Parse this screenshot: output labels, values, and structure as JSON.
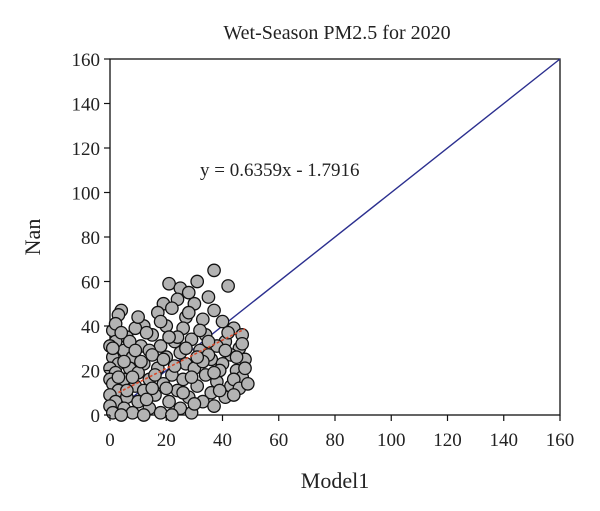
{
  "chart_data": {
    "type": "scatter",
    "title": "Wet-Season PM2.5 for 2020",
    "xlabel": "Model1",
    "ylabel": "Nan",
    "xlim": [
      0,
      160
    ],
    "ylim": [
      0,
      160
    ],
    "xticks": [
      "0",
      "20",
      "40",
      "60",
      "80",
      "100",
      "120",
      "140",
      "160"
    ],
    "yticks": [
      "0",
      "20",
      "40",
      "60",
      "80",
      "100",
      "120",
      "140",
      "160"
    ],
    "grid": false,
    "annotation": "y = 0.6359x - 1.7916",
    "identity_line": {
      "x": [
        0,
        160
      ],
      "y": [
        0,
        160
      ],
      "color": "#2b2f8f"
    },
    "fit_line": {
      "slope": 0.6359,
      "intercept": -1.7916,
      "x": [
        3,
        48
      ],
      "color": "#d94a2b"
    },
    "marker": {
      "fill": "#b3b3b3",
      "stroke": "#111111"
    },
    "points": [
      [
        37,
        65
      ],
      [
        31,
        60
      ],
      [
        21,
        59
      ],
      [
        25,
        57
      ],
      [
        42,
        58
      ],
      [
        28,
        55
      ],
      [
        35,
        53
      ],
      [
        24,
        52
      ],
      [
        19,
        50
      ],
      [
        30,
        50
      ],
      [
        22,
        48
      ],
      [
        37,
        47
      ],
      [
        17,
        46
      ],
      [
        4,
        47
      ],
      [
        3,
        45
      ],
      [
        27,
        44
      ],
      [
        33,
        43
      ],
      [
        40,
        42
      ],
      [
        12,
        40
      ],
      [
        20,
        40
      ],
      [
        44,
        39
      ],
      [
        1,
        38
      ],
      [
        9,
        39
      ],
      [
        26,
        39
      ],
      [
        47,
        36
      ],
      [
        6,
        35
      ],
      [
        15,
        36
      ],
      [
        34,
        36
      ],
      [
        2,
        33
      ],
      [
        23,
        33
      ],
      [
        29,
        34
      ],
      [
        41,
        33
      ],
      [
        0,
        31
      ],
      [
        11,
        31
      ],
      [
        18,
        31
      ],
      [
        38,
        31
      ],
      [
        46,
        30
      ],
      [
        5,
        29
      ],
      [
        14,
        29
      ],
      [
        25,
        28
      ],
      [
        32,
        29
      ],
      [
        43,
        27
      ],
      [
        1,
        26
      ],
      [
        8,
        26
      ],
      [
        20,
        26
      ],
      [
        36,
        25
      ],
      [
        48,
        25
      ],
      [
        3,
        23
      ],
      [
        12,
        23
      ],
      [
        27,
        23
      ],
      [
        40,
        23
      ],
      [
        0,
        21
      ],
      [
        7,
        21
      ],
      [
        17,
        21
      ],
      [
        30,
        21
      ],
      [
        45,
        20
      ],
      [
        2,
        19
      ],
      [
        10,
        19
      ],
      [
        22,
        18
      ],
      [
        34,
        18
      ],
      [
        47,
        17
      ],
      [
        0,
        16
      ],
      [
        5,
        16
      ],
      [
        14,
        16
      ],
      [
        26,
        16
      ],
      [
        38,
        15
      ],
      [
        1,
        14
      ],
      [
        9,
        13
      ],
      [
        19,
        14
      ],
      [
        31,
        13
      ],
      [
        43,
        13
      ],
      [
        3,
        11
      ],
      [
        12,
        11
      ],
      [
        24,
        11
      ],
      [
        36,
        10
      ],
      [
        0,
        9
      ],
      [
        6,
        8
      ],
      [
        16,
        9
      ],
      [
        28,
        8
      ],
      [
        41,
        8
      ],
      [
        2,
        6
      ],
      [
        10,
        6
      ],
      [
        21,
        6
      ],
      [
        33,
        6
      ],
      [
        0,
        4
      ],
      [
        5,
        3
      ],
      [
        14,
        3
      ],
      [
        25,
        3
      ],
      [
        37,
        4
      ],
      [
        1,
        1
      ],
      [
        8,
        1
      ],
      [
        18,
        1
      ],
      [
        29,
        1
      ],
      [
        4,
        0
      ],
      [
        12,
        0
      ],
      [
        22,
        0
      ],
      [
        15,
        27
      ],
      [
        13,
        37
      ],
      [
        7,
        33
      ],
      [
        39,
        20
      ],
      [
        44,
        16
      ],
      [
        48,
        21
      ],
      [
        46,
        12
      ],
      [
        35,
        27
      ],
      [
        24,
        35
      ],
      [
        10,
        44
      ],
      [
        2,
        41
      ],
      [
        18,
        42
      ],
      [
        28,
        46
      ],
      [
        32,
        38
      ],
      [
        42,
        37
      ],
      [
        20,
        12
      ],
      [
        16,
        18
      ],
      [
        27,
        30
      ],
      [
        6,
        11
      ],
      [
        11,
        24
      ],
      [
        39,
        11
      ],
      [
        30,
        5
      ],
      [
        45,
        26
      ],
      [
        23,
        22
      ],
      [
        8,
        17
      ],
      [
        4,
        37
      ],
      [
        19,
        25
      ],
      [
        35,
        33
      ],
      [
        49,
        14
      ],
      [
        41,
        29
      ],
      [
        13,
        7
      ],
      [
        26,
        10
      ],
      [
        33,
        24
      ],
      [
        9,
        29
      ],
      [
        3,
        17
      ],
      [
        21,
        35
      ],
      [
        37,
        19
      ],
      [
        47,
        32
      ],
      [
        15,
        12
      ],
      [
        29,
        17
      ],
      [
        5,
        24
      ],
      [
        1,
        30
      ],
      [
        44,
        9
      ],
      [
        31,
        26
      ]
    ]
  }
}
